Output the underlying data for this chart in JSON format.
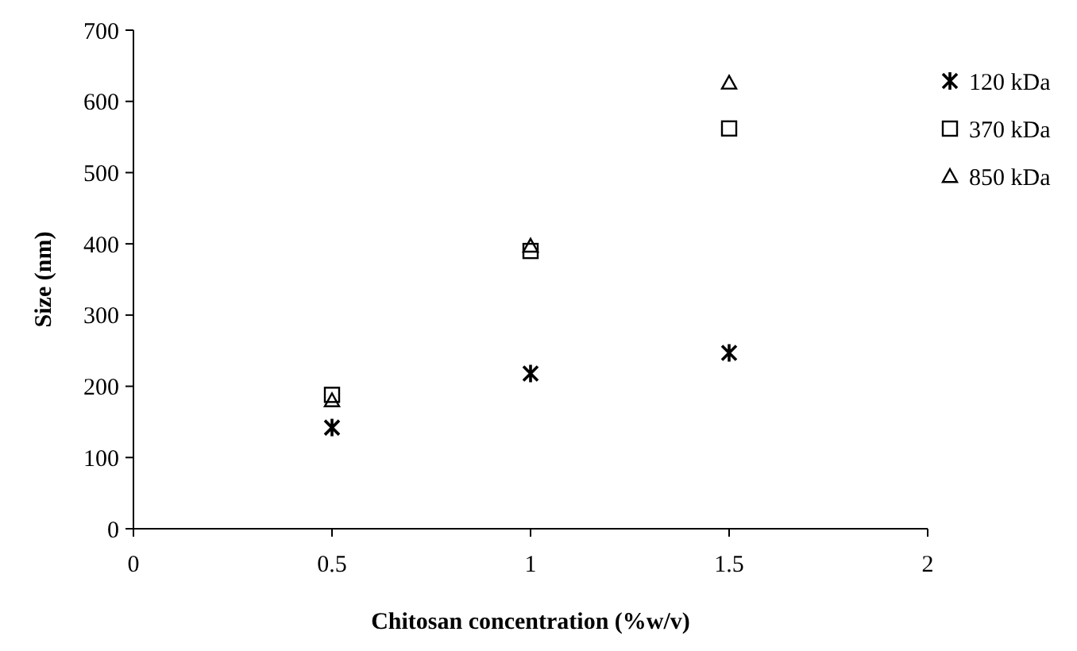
{
  "chart_data": {
    "type": "scatter",
    "xlabel": "Chitosan concentration (%w/v)",
    "ylabel": "Size (nm)",
    "x": [
      0.5,
      1,
      1.5
    ],
    "series": [
      {
        "name": "120 kDa",
        "color": "#000000",
        "marker": "cross",
        "values": [
          142,
          218,
          247
        ]
      },
      {
        "name": "370 kDa",
        "color": "#000000",
        "marker": "square",
        "values": [
          188,
          390,
          562
        ]
      },
      {
        "name": "850 kDa",
        "color": "#000000",
        "marker": "triangle",
        "values": [
          180,
          397,
          626
        ]
      }
    ],
    "xlim": [
      0,
      2
    ],
    "xticks": [
      0,
      0.5,
      1,
      1.5,
      2
    ],
    "ylim": [
      0,
      700
    ],
    "yticks": [
      0,
      100,
      200,
      300,
      400,
      500,
      600,
      700
    ],
    "grid": false,
    "legend": "top right"
  }
}
